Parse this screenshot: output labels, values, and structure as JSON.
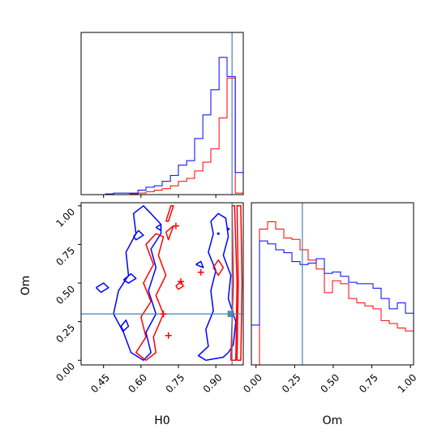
{
  "chart_data": {
    "type": "corner",
    "parameters": [
      "H0",
      "Om"
    ],
    "truths": {
      "H0": 0.965,
      "Om": 0.3
    },
    "colors": {
      "red": "#ff0000",
      "blue": "#0000ff",
      "truth": "#4682b4",
      "axes": "#000000"
    },
    "axes": {
      "H0": {
        "label": "H0",
        "range": [
          0.36,
          1.01
        ],
        "ticks": [
          0.45,
          0.6,
          0.75,
          0.9
        ],
        "tick_labels": [
          "0.45",
          "0.60",
          "0.75",
          "0.90"
        ]
      },
      "Om": {
        "label": "Om",
        "range": [
          -0.03,
          1.02
        ],
        "ticks": [
          0.0,
          0.25,
          0.5,
          0.75,
          1.0
        ],
        "tick_labels": [
          "0.00",
          "0.25",
          "0.50",
          "0.75",
          "1.00"
        ]
      }
    },
    "hist_H0": {
      "bin_edges": [
        0.36,
        0.393,
        0.425,
        0.458,
        0.49,
        0.523,
        0.555,
        0.588,
        0.62,
        0.653,
        0.685,
        0.718,
        0.75,
        0.783,
        0.815,
        0.848,
        0.88,
        0.913,
        0.945,
        0.978,
        1.01
      ],
      "series": [
        {
          "color": "red",
          "values": [
            0.0,
            0.0,
            0.0,
            0.0,
            0.0,
            0.0,
            0.005,
            0.01,
            0.02,
            0.03,
            0.04,
            0.06,
            0.09,
            0.11,
            0.16,
            0.22,
            0.31,
            0.52,
            0.79,
            0.01
          ]
        },
        {
          "color": "blue",
          "values": [
            0.0,
            0.0,
            0.0,
            0.005,
            0.01,
            0.01,
            0.01,
            0.03,
            0.05,
            0.06,
            0.09,
            0.13,
            0.2,
            0.23,
            0.38,
            0.54,
            0.71,
            0.93,
            0.8,
            0.15
          ]
        }
      ]
    },
    "hist_Om": {
      "bin_edges": [
        -0.03,
        0.0225,
        0.075,
        0.1275,
        0.18,
        0.2325,
        0.285,
        0.3375,
        0.39,
        0.4425,
        0.495,
        0.5475,
        0.6,
        0.6525,
        0.705,
        0.7575,
        0.81,
        0.8625,
        0.915,
        0.9675,
        1.02
      ],
      "series": [
        {
          "color": "red",
          "values": [
            0.0,
            0.92,
            0.97,
            0.92,
            0.86,
            0.85,
            0.78,
            0.71,
            0.65,
            0.49,
            0.57,
            0.55,
            0.45,
            0.42,
            0.4,
            0.38,
            0.3,
            0.28,
            0.25,
            0.23
          ]
        },
        {
          "color": "blue",
          "values": [
            0.27,
            0.84,
            0.82,
            0.78,
            0.76,
            0.7,
            0.68,
            0.69,
            0.72,
            0.62,
            0.63,
            0.6,
            0.56,
            0.55,
            0.55,
            0.52,
            0.45,
            0.38,
            0.42,
            0.35
          ]
        }
      ]
    },
    "contours": [
      {
        "color": "blue",
        "points": [
          [
            0.68,
            0.88
          ],
          [
            0.64,
            0.95
          ],
          [
            0.61,
            1.0
          ],
          [
            0.57,
            0.95
          ],
          [
            0.58,
            0.82
          ],
          [
            0.54,
            0.7
          ],
          [
            0.55,
            0.55
          ],
          [
            0.51,
            0.45
          ],
          [
            0.49,
            0.3
          ],
          [
            0.53,
            0.18
          ],
          [
            0.56,
            0.05
          ],
          [
            0.61,
            0.0
          ],
          [
            0.64,
            0.05
          ],
          [
            0.62,
            0.18
          ],
          [
            0.66,
            0.3
          ],
          [
            0.63,
            0.45
          ],
          [
            0.66,
            0.6
          ],
          [
            0.64,
            0.72
          ],
          [
            0.68,
            0.82
          ],
          [
            0.68,
            0.88
          ]
        ]
      },
      {
        "color": "blue",
        "points": [
          [
            0.88,
            0.9
          ],
          [
            0.91,
            0.95
          ],
          [
            0.94,
            0.92
          ],
          [
            0.95,
            0.8
          ],
          [
            0.93,
            0.68
          ],
          [
            0.96,
            0.55
          ],
          [
            0.95,
            0.4
          ],
          [
            0.98,
            0.25
          ],
          [
            0.97,
            0.1
          ],
          [
            0.95,
            0.05
          ],
          [
            0.93,
            0.02
          ],
          [
            0.86,
            0.0
          ],
          [
            0.83,
            0.03
          ],
          [
            0.87,
            0.09
          ],
          [
            0.86,
            0.2
          ],
          [
            0.89,
            0.32
          ],
          [
            0.88,
            0.45
          ],
          [
            0.9,
            0.58
          ],
          [
            0.87,
            0.7
          ],
          [
            0.89,
            0.82
          ],
          [
            0.88,
            0.9
          ]
        ]
      },
      {
        "color": "blue",
        "points": [
          [
            0.42,
            0.47
          ],
          [
            0.45,
            0.5
          ],
          [
            0.47,
            0.47
          ],
          [
            0.44,
            0.44
          ],
          [
            0.42,
            0.47
          ]
        ]
      },
      {
        "color": "blue",
        "points": [
          [
            0.53,
            0.52
          ],
          [
            0.56,
            0.56
          ],
          [
            0.58,
            0.53
          ],
          [
            0.55,
            0.5
          ],
          [
            0.53,
            0.52
          ]
        ]
      },
      {
        "color": "blue",
        "points": [
          [
            0.57,
            0.8
          ],
          [
            0.59,
            0.84
          ],
          [
            0.61,
            0.81
          ],
          [
            0.58,
            0.78
          ],
          [
            0.57,
            0.8
          ]
        ]
      },
      {
        "color": "blue",
        "points": [
          [
            0.66,
            0.86
          ],
          [
            0.68,
            0.88
          ],
          [
            0.68,
            0.84
          ],
          [
            0.66,
            0.86
          ]
        ]
      },
      {
        "color": "blue",
        "points": [
          [
            0.82,
            0.62
          ],
          [
            0.84,
            0.64
          ],
          [
            0.85,
            0.6
          ],
          [
            0.82,
            0.62
          ]
        ]
      },
      {
        "color": "blue",
        "points": [
          [
            0.52,
            0.22
          ],
          [
            0.54,
            0.26
          ],
          [
            0.55,
            0.22
          ],
          [
            0.53,
            0.19
          ],
          [
            0.52,
            0.22
          ]
        ]
      },
      {
        "color": "red",
        "points": [
          [
            0.7,
            0.9
          ],
          [
            0.72,
            1.0
          ],
          [
            0.73,
            1.0
          ],
          [
            0.71,
            0.9
          ],
          [
            0.7,
            0.9
          ]
        ]
      },
      {
        "color": "red",
        "points": [
          [
            0.66,
            0.82
          ],
          [
            0.62,
            0.75
          ],
          [
            0.65,
            0.62
          ],
          [
            0.61,
            0.5
          ],
          [
            0.64,
            0.38
          ],
          [
            0.6,
            0.28
          ],
          [
            0.62,
            0.15
          ],
          [
            0.58,
            0.05
          ],
          [
            0.62,
            0.0
          ],
          [
            0.66,
            0.05
          ],
          [
            0.65,
            0.15
          ],
          [
            0.69,
            0.3
          ],
          [
            0.66,
            0.42
          ],
          [
            0.7,
            0.55
          ],
          [
            0.67,
            0.68
          ],
          [
            0.69,
            0.8
          ],
          [
            0.66,
            0.82
          ]
        ]
      },
      {
        "color": "red",
        "points": [
          [
            0.7,
            0.83
          ],
          [
            0.73,
            0.87
          ],
          [
            0.71,
            0.78
          ],
          [
            0.7,
            0.83
          ]
        ]
      },
      {
        "color": "red",
        "points": [
          [
            0.96,
            0.0
          ],
          [
            0.97,
            0.5
          ],
          [
            0.965,
            1.0
          ],
          [
            0.975,
            1.0
          ],
          [
            0.985,
            0.5
          ],
          [
            0.98,
            0.0
          ],
          [
            0.96,
            0.0
          ]
        ]
      },
      {
        "color": "red",
        "points": [
          [
            0.985,
            0.0
          ],
          [
            0.99,
            0.5
          ],
          [
            0.985,
            1.0
          ],
          [
            1.0,
            1.0
          ],
          [
            1.005,
            0.5
          ],
          [
            1.0,
            0.0
          ],
          [
            0.985,
            0.0
          ]
        ]
      },
      {
        "color": "red",
        "points": [
          [
            0.89,
            0.6
          ],
          [
            0.91,
            0.65
          ],
          [
            0.93,
            0.6
          ],
          [
            0.91,
            0.55
          ],
          [
            0.89,
            0.6
          ]
        ]
      },
      {
        "color": "red",
        "points": [
          [
            0.74,
            0.48
          ],
          [
            0.76,
            0.51
          ],
          [
            0.77,
            0.48
          ],
          [
            0.75,
            0.46
          ],
          [
            0.74,
            0.48
          ]
        ]
      }
    ],
    "markers": [
      {
        "color": "red",
        "shape": "plus",
        "H0": 0.69,
        "Om": 0.3
      },
      {
        "color": "red",
        "shape": "plus",
        "H0": 0.71,
        "Om": 0.16
      },
      {
        "color": "red",
        "shape": "plus",
        "H0": 0.76,
        "Om": 0.51
      },
      {
        "color": "red",
        "shape": "plus",
        "H0": 0.84,
        "Om": 0.57
      },
      {
        "color": "red",
        "shape": "plus",
        "H0": 0.74,
        "Om": 0.87
      },
      {
        "color": "blue",
        "shape": "dot",
        "H0": 0.95,
        "Om": 0.85
      },
      {
        "color": "blue",
        "shape": "dot",
        "H0": 0.91,
        "Om": 0.82
      },
      {
        "color": "blue",
        "shape": "square",
        "H0": 0.96,
        "Om": 0.3
      }
    ]
  }
}
